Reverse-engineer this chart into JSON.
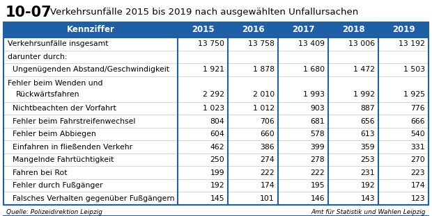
{
  "title_number": "10-07",
  "title_text": "Verkehrsunfälle 2015 bis 2019 nach ausgewählten Unfallursachen",
  "header_bg": "#1f5fa6",
  "header_text_color": "#ffffff",
  "table_border_color": "#1f5fa6",
  "row_line_color": "#c8c8c8",
  "bg_color": "#ffffff",
  "footer_source": "Quelle: Polizeidirektion Leipzig",
  "footer_right": "Amt für Statistik und Wahlen Leipzig",
  "columns": [
    "Kennziffer",
    "2015",
    "2016",
    "2017",
    "2018",
    "2019"
  ],
  "rows": [
    {
      "label": "Verkehrsunfälle insgesamt",
      "line2": "",
      "values": [
        "13 750",
        "13 758",
        "13 409",
        "13 006",
        "13 192"
      ],
      "tall": false
    },
    {
      "label": "darunter durch:",
      "line2": "",
      "values": [
        "",
        "",
        "",
        "",
        ""
      ],
      "tall": false
    },
    {
      "label": "  Ungenügenden Abstand/Geschwindigkeit",
      "line2": "",
      "values": [
        "1 921",
        "1 878",
        "1 680",
        "1 472",
        "1 503"
      ],
      "tall": false
    },
    {
      "label": "  Fehler beim Wenden und",
      "line2": "      Rückwärtsfahren",
      "values": [
        "2 292",
        "2 010",
        "1 993",
        "1 992",
        "1 925"
      ],
      "tall": true
    },
    {
      "label": "  Nichtbeachten der Vorfahrt",
      "line2": "",
      "values": [
        "1 023",
        "1 012",
        "903",
        "887",
        "776"
      ],
      "tall": false
    },
    {
      "label": "  Fehler beim Fahrstreifenwechsel",
      "line2": "",
      "values": [
        "804",
        "706",
        "681",
        "656",
        "666"
      ],
      "tall": false
    },
    {
      "label": "  Fehler beim Abbiegen",
      "line2": "",
      "values": [
        "604",
        "660",
        "578",
        "613",
        "540"
      ],
      "tall": false
    },
    {
      "label": "  Einfahren in fließenden Verkehr",
      "line2": "",
      "values": [
        "462",
        "386",
        "399",
        "359",
        "331"
      ],
      "tall": false
    },
    {
      "label": "  Mangelnde Fahrtüchtigkeit",
      "line2": "",
      "values": [
        "250",
        "274",
        "278",
        "253",
        "270"
      ],
      "tall": false
    },
    {
      "label": "  Fahren bei Rot",
      "line2": "",
      "values": [
        "199",
        "222",
        "222",
        "231",
        "223"
      ],
      "tall": false
    },
    {
      "label": "  Fehler durch Fußgänger",
      "line2": "",
      "values": [
        "192",
        "174",
        "195",
        "192",
        "174"
      ],
      "tall": false
    },
    {
      "label": "  Falsches Verhalten gegenüber Fußgängern",
      "line2": "",
      "values": [
        "145",
        "101",
        "146",
        "143",
        "123"
      ],
      "tall": false
    }
  ]
}
